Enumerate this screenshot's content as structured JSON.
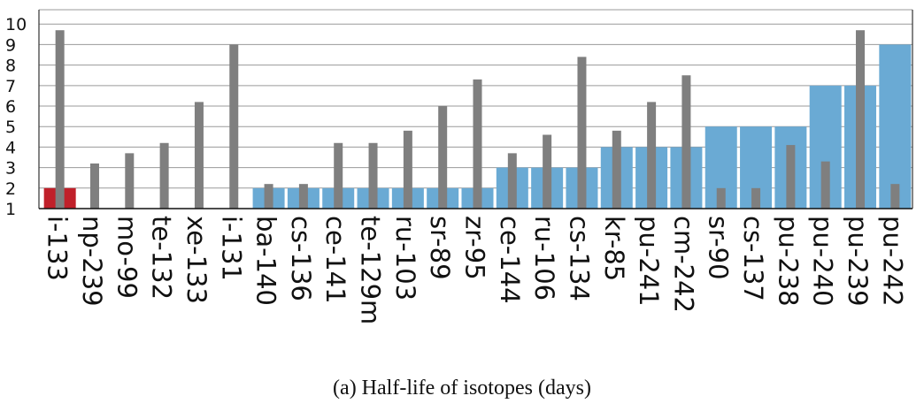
{
  "chart_data": {
    "type": "bar",
    "title": "",
    "caption": "(a) Half-life of isotopes (days)",
    "categories": [
      "i-133",
      "np-239",
      "mo-99",
      "te-132",
      "xe-133",
      "i-131",
      "ba-140",
      "cs-136",
      "ce-141",
      "te-129m",
      "ru-103",
      "sr-89",
      "zr-95",
      "ce-144",
      "ru-106",
      "cs-134",
      "kr-85",
      "pu-241",
      "cm-242",
      "sr-90",
      "cs-137",
      "pu-238",
      "pu-240",
      "pu-239",
      "pu-242"
    ],
    "y_ticks": [
      1,
      2,
      3,
      4,
      5,
      6,
      7,
      8,
      9,
      10
    ],
    "ylim": [
      1,
      10.7
    ],
    "grid": true,
    "series": [
      {
        "values": [
          2,
          1,
          1,
          1,
          1,
          1,
          2,
          2,
          2,
          2,
          2,
          2,
          2,
          3,
          3,
          3,
          4,
          4,
          4,
          5,
          5,
          5,
          7,
          7,
          9
        ],
        "colors": [
          "#c0202a",
          "#5d9fcb",
          "#5d9fcb",
          "#5d9fcb",
          "#5d9fcb",
          "#5d9fcb",
          "#6aaad4",
          "#6aaad4",
          "#6aaad4",
          "#6aaad4",
          "#6aaad4",
          "#6aaad4",
          "#6aaad4",
          "#6aaad4",
          "#6aaad4",
          "#6aaad4",
          "#6aaad4",
          "#6aaad4",
          "#6aaad4",
          "#6aaad4",
          "#6aaad4",
          "#6aaad4",
          "#6aaad4",
          "#6aaad4",
          "#6aaad4"
        ]
      },
      {
        "values": [
          9.7,
          3.2,
          3.7,
          4.2,
          6.2,
          9.0,
          2.2,
          2.2,
          4.2,
          4.2,
          4.8,
          6.0,
          7.3,
          3.7,
          4.6,
          8.4,
          4.8,
          6.2,
          7.5,
          2.0,
          2.0,
          4.1,
          3.3,
          9.7,
          2.2
        ],
        "color": "#7f7f7f"
      }
    ]
  }
}
